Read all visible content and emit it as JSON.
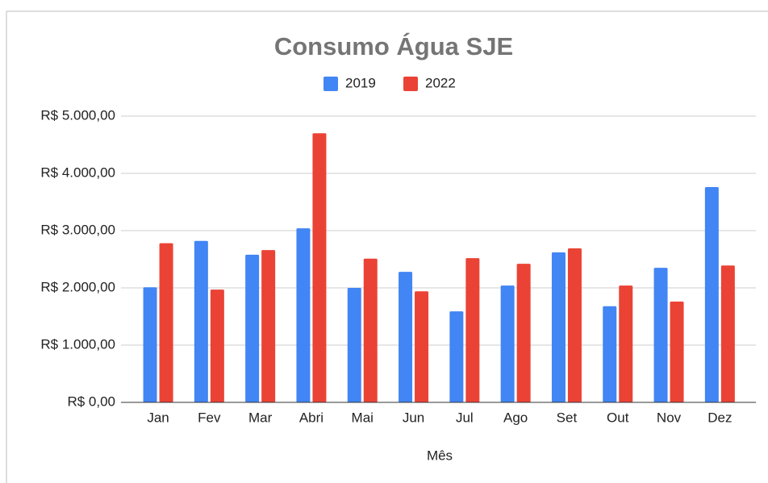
{
  "chart_data": {
    "type": "bar",
    "title": "Consumo Água SJE",
    "x_label": "Mês",
    "categories": [
      "Jan",
      "Fev",
      "Mar",
      "Abri",
      "Mai",
      "Jun",
      "Jul",
      "Ago",
      "Set",
      "Out",
      "Nov",
      "Dez"
    ],
    "series": [
      {
        "name": "2019",
        "color": "#4285f4",
        "values": [
          2010,
          2820,
          2580,
          3040,
          2000,
          2280,
          1590,
          2040,
          2620,
          1680,
          2350,
          3760
        ]
      },
      {
        "name": "2022",
        "color": "#ea4335",
        "values": [
          2780,
          1970,
          2660,
          4700,
          2510,
          1940,
          2520,
          2420,
          2690,
          2040,
          1760,
          2390
        ]
      }
    ],
    "ylim": [
      0,
      5000
    ],
    "yticks": [
      {
        "value": 0,
        "label": "R$ 0,00"
      },
      {
        "value": 1000,
        "label": "R$ 1.000,00"
      },
      {
        "value": 2000,
        "label": "R$ 2.000,00"
      },
      {
        "value": 3000,
        "label": "R$ 3.000,00"
      },
      {
        "value": 4000,
        "label": "R$ 4.000,00"
      },
      {
        "value": 5000,
        "label": "R$ 5.000,00"
      }
    ],
    "grid": true,
    "legend": "top"
  }
}
